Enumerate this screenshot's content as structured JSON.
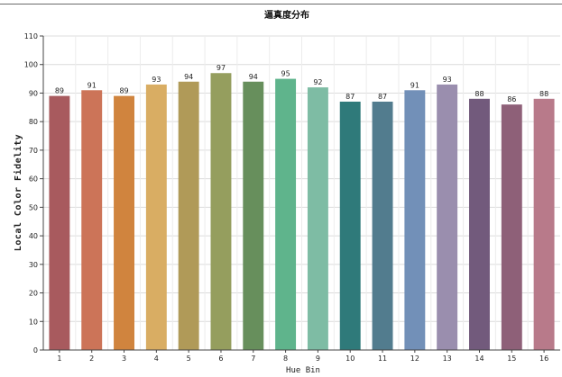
{
  "chart_data": {
    "type": "bar",
    "title": "逼真度分布",
    "xlabel": "Hue Bin",
    "ylabel": "Local Color Fidelity",
    "categories": [
      "1",
      "2",
      "3",
      "4",
      "5",
      "6",
      "7",
      "8",
      "9",
      "10",
      "11",
      "12",
      "13",
      "14",
      "15",
      "16"
    ],
    "values": [
      89,
      91,
      89,
      93,
      94,
      97,
      94,
      95,
      92,
      87,
      87,
      91,
      93,
      88,
      86,
      88
    ],
    "colors": [
      "#a85a5e",
      "#cc7458",
      "#d0843e",
      "#d9ad63",
      "#b09a58",
      "#959e5e",
      "#678f5c",
      "#5fb48c",
      "#7ebca4",
      "#2f7a7a",
      "#527c8e",
      "#7290b8",
      "#9a8eae",
      "#725a7c",
      "#8e6078",
      "#b87a8a"
    ],
    "ylim": [
      0,
      110
    ],
    "yticks": [
      0,
      10,
      20,
      30,
      40,
      50,
      60,
      70,
      80,
      90,
      100,
      110
    ],
    "grid": true,
    "legend": "none"
  }
}
